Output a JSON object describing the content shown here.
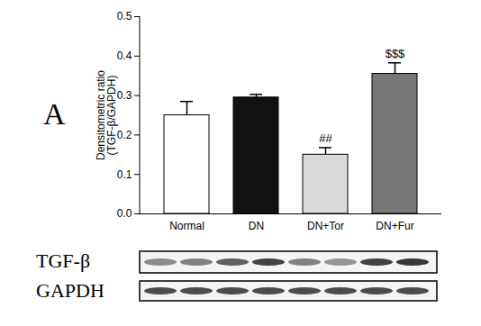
{
  "chart_data": {
    "type": "bar",
    "panel_label": "A",
    "y_label": "Densitometric ratio\n(TGF-β/GAPDH)",
    "categories": [
      "Normal",
      "DN",
      "DN+Tor",
      "DN+Fur"
    ],
    "values": [
      0.25,
      0.295,
      0.15,
      0.355
    ],
    "errors": [
      0.035,
      0.008,
      0.018,
      0.028
    ],
    "annotations": [
      "",
      "",
      "##",
      "$$$"
    ],
    "colors": [
      "#ffffff",
      "#111111",
      "#d9d9d9",
      "#777777"
    ],
    "ylim": [
      0,
      0.5
    ],
    "yticks": [
      {
        "value": 0,
        "label": "0.0"
      },
      0.1,
      0.2,
      0.3,
      0.4,
      0.5
    ],
    "grid": false,
    "blot_labels": [
      "TGF-β",
      "GAPDH"
    ]
  }
}
